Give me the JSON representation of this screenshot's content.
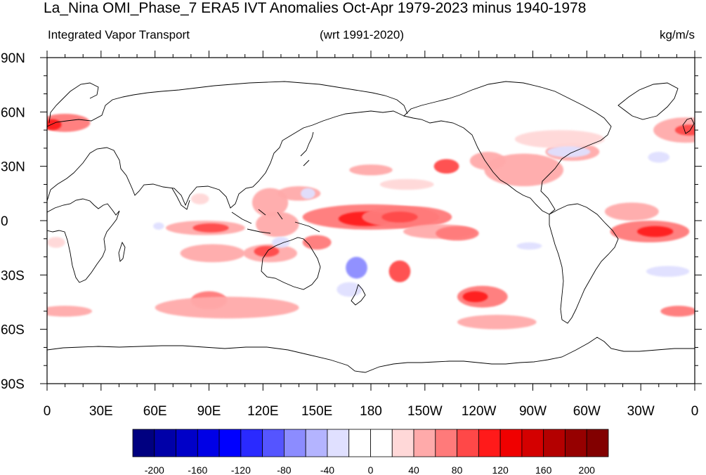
{
  "title": "La_Nina OMI_Phase_7 ERA5 IVT Anomalies Oct-Apr 1979-2023 minus 1940-1978",
  "subtitle_left": "Integrated Vapor Transport",
  "subtitle_center": "(wrt 1991-2020)",
  "subtitle_right": "kg/m/s",
  "map": {
    "projection": "cylindrical equidistant",
    "center_longitude": 180,
    "lon_range": [
      0,
      360
    ],
    "lat_range": [
      -90,
      90
    ],
    "lat_labels": [
      "90N",
      "60N",
      "30N",
      "0",
      "30S",
      "60S",
      "90S"
    ],
    "lon_labels": [
      "0",
      "30E",
      "60E",
      "90E",
      "120E",
      "150E",
      "180",
      "150W",
      "120W",
      "90W",
      "60W",
      "30W",
      "0"
    ],
    "background": "#ffffff",
    "coast_color": "#000000"
  },
  "colorbar": {
    "colors": [
      "#000080",
      "#0000a8",
      "#0000c8",
      "#0000e6",
      "#0000ff",
      "#2a2aff",
      "#5555ff",
      "#8c8cff",
      "#b4b4ff",
      "#e0e0ff",
      "#ffffff",
      "#ffffff",
      "#ffd8d8",
      "#ffaaaa",
      "#ff7a7a",
      "#ff4848",
      "#ff1a1a",
      "#f00000",
      "#d40000",
      "#b40000",
      "#960000",
      "#820000"
    ],
    "tick_labels": [
      "-200",
      "-160",
      "-120",
      "-80",
      "-40",
      "0",
      "40",
      "80",
      "120",
      "160",
      "200"
    ]
  },
  "anomalies": [
    {
      "lon": 180,
      "lat": 2,
      "rx": 38,
      "ry": 7,
      "v": 60
    },
    {
      "lon": 177,
      "lat": 1,
      "rx": 15,
      "ry": 4,
      "v": 100
    },
    {
      "lon": 200,
      "lat": 2,
      "rx": 25,
      "ry": 6,
      "v": 60
    },
    {
      "lon": 196,
      "lat": 2,
      "rx": 10,
      "ry": 3,
      "v": 90
    },
    {
      "lon": 218,
      "lat": -6,
      "rx": 20,
      "ry": 4,
      "v": 40
    },
    {
      "lon": 228,
      "lat": -7,
      "rx": 12,
      "ry": 4,
      "v": 70
    },
    {
      "lon": 335,
      "lat": -6,
      "rx": 22,
      "ry": 6,
      "v": 70
    },
    {
      "lon": 338,
      "lat": -6,
      "rx": 10,
      "ry": 3,
      "v": 110
    },
    {
      "lon": 88,
      "lat": -4,
      "rx": 22,
      "ry": 4,
      "v": 40
    },
    {
      "lon": 91,
      "lat": -4,
      "rx": 10,
      "ry": 2.5,
      "v": 90
    },
    {
      "lon": 92,
      "lat": -18,
      "rx": 18,
      "ry": 5,
      "v": 40
    },
    {
      "lon": 124,
      "lat": -18,
      "rx": 15,
      "ry": 5,
      "v": 50
    },
    {
      "lon": 122,
      "lat": -17,
      "rx": 7,
      "ry": 3,
      "v": 90
    },
    {
      "lon": 128,
      "lat": -2,
      "rx": 12,
      "ry": 7,
      "v": 50
    },
    {
      "lon": 124,
      "lat": 10,
      "rx": 10,
      "ry": 8,
      "v": 50
    },
    {
      "lon": 150,
      "lat": -12,
      "rx": 8,
      "ry": 4,
      "v": 60
    },
    {
      "lon": 196,
      "lat": -28,
      "rx": 6,
      "ry": 6,
      "v": 90
    },
    {
      "lon": 242,
      "lat": -42,
      "rx": 14,
      "ry": 6,
      "v": 70
    },
    {
      "lon": 238,
      "lat": -42,
      "rx": 7,
      "ry": 3,
      "v": 100
    },
    {
      "lon": 250,
      "lat": -56,
      "rx": 22,
      "ry": 4,
      "v": 50
    },
    {
      "lon": 90,
      "lat": -44,
      "rx": 10,
      "ry": 5,
      "v": 60
    },
    {
      "lon": 100,
      "lat": -48,
      "rx": 40,
      "ry": 6,
      "v": 40
    },
    {
      "lon": 10,
      "lat": -50,
      "rx": 15,
      "ry": 3,
      "v": 50
    },
    {
      "lon": 351,
      "lat": -50,
      "rx": 10,
      "ry": 3,
      "v": 60
    },
    {
      "lon": 10,
      "lat": 54,
      "rx": 14,
      "ry": 5,
      "v": 70
    },
    {
      "lon": 3,
      "lat": 53,
      "rx": 5,
      "ry": 3,
      "v": 110
    },
    {
      "lon": 355,
      "lat": 50,
      "rx": 18,
      "ry": 7,
      "v": 50
    },
    {
      "lon": 357,
      "lat": 50,
      "rx": 8,
      "ry": 3,
      "v": 90
    },
    {
      "lon": 265,
      "lat": 28,
      "rx": 22,
      "ry": 9,
      "v": 40
    },
    {
      "lon": 292,
      "lat": 38,
      "rx": 15,
      "ry": 5,
      "v": 50
    },
    {
      "lon": 285,
      "lat": 45,
      "rx": 25,
      "ry": 5,
      "v": 35
    },
    {
      "lon": 245,
      "lat": 33,
      "rx": 10,
      "ry": 5,
      "v": 40
    },
    {
      "lon": 222,
      "lat": 30,
      "rx": 7,
      "ry": 4,
      "v": 90
    },
    {
      "lon": 180,
      "lat": 28,
      "rx": 12,
      "ry": 3,
      "v": 40
    },
    {
      "lon": 200,
      "lat": 20,
      "rx": 15,
      "ry": 3,
      "v": 30
    },
    {
      "lon": 325,
      "lat": 5,
      "rx": 15,
      "ry": 5,
      "v": 40
    },
    {
      "lon": 140,
      "lat": 15,
      "rx": 12,
      "ry": 4,
      "v": 40
    },
    {
      "lon": 5,
      "lat": -12,
      "rx": 5,
      "ry": 3,
      "v": 30
    },
    {
      "lon": 85,
      "lat": 12,
      "rx": 5,
      "ry": 3,
      "v": 30
    },
    {
      "lon": 172,
      "lat": -26,
      "rx": 6,
      "ry": 6,
      "v": -70
    },
    {
      "lon": 168,
      "lat": -38,
      "rx": 7,
      "ry": 4,
      "v": -40
    },
    {
      "lon": 130,
      "lat": -12,
      "rx": 5,
      "ry": 3,
      "v": -40
    },
    {
      "lon": 145,
      "lat": 15,
      "rx": 4,
      "ry": 3,
      "v": -40
    },
    {
      "lon": 290,
      "lat": 38,
      "rx": 12,
      "ry": 3,
      "v": -40
    },
    {
      "lon": 345,
      "lat": -28,
      "rx": 12,
      "ry": 3,
      "v": -40
    },
    {
      "lon": 268,
      "lat": -14,
      "rx": 7,
      "ry": 2,
      "v": -40
    },
    {
      "lon": 340,
      "lat": 35,
      "rx": 6,
      "ry": 3,
      "v": -40
    },
    {
      "lon": 62,
      "lat": -3,
      "rx": 3,
      "ry": 2,
      "v": -40
    }
  ]
}
